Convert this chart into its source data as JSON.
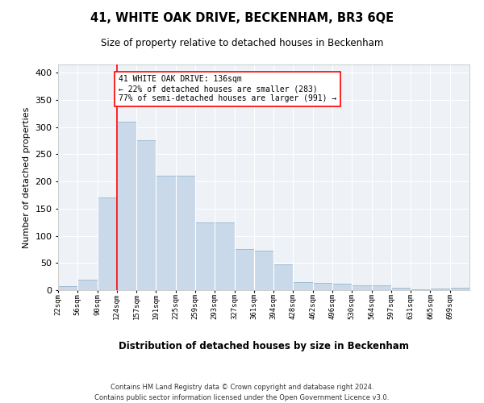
{
  "title": "41, WHITE OAK DRIVE, BECKENHAM, BR3 6QE",
  "subtitle": "Size of property relative to detached houses in Beckenham",
  "xlabel": "Distribution of detached houses by size in Beckenham",
  "ylabel": "Number of detached properties",
  "bar_color": "#c9d9ea",
  "bar_edge_color": "#a0bcd4",
  "background_color": "#eef2f7",
  "grid_color": "#ffffff",
  "redline_bin": 3,
  "annotation_text": "41 WHITE OAK DRIVE: 136sqm\n← 22% of detached houses are smaller (283)\n77% of semi-detached houses are larger (991) →",
  "footer1": "Contains HM Land Registry data © Crown copyright and database right 2024.",
  "footer2": "Contains public sector information licensed under the Open Government Licence v3.0.",
  "bin_labels": [
    "22sqm",
    "56sqm",
    "90sqm",
    "124sqm",
    "157sqm",
    "191sqm",
    "225sqm",
    "259sqm",
    "293sqm",
    "327sqm",
    "361sqm",
    "394sqm",
    "428sqm",
    "462sqm",
    "496sqm",
    "530sqm",
    "564sqm",
    "597sqm",
    "631sqm",
    "665sqm",
    "699sqm"
  ],
  "bar_heights": [
    7,
    20,
    170,
    310,
    275,
    210,
    210,
    125,
    125,
    75,
    72,
    48,
    15,
    13,
    12,
    9,
    9,
    4,
    1,
    3,
    4
  ],
  "ylim": [
    0,
    415
  ],
  "yticks": [
    0,
    50,
    100,
    150,
    200,
    250,
    300,
    350,
    400
  ]
}
